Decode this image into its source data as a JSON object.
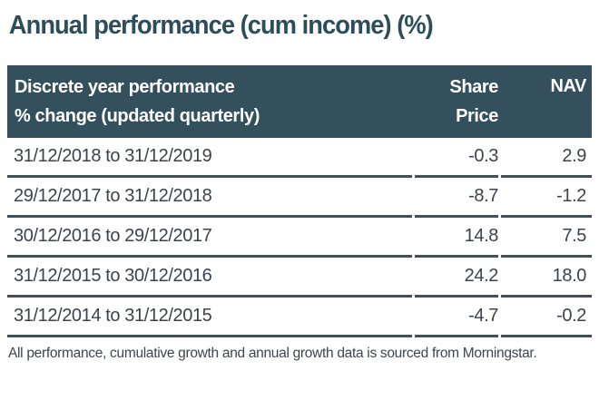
{
  "title": "Annual performance (cum income) (%)",
  "table": {
    "header": {
      "col1_line1": "Discrete year performance",
      "col1_line2": "% change (updated quarterly)",
      "col2_line1": "Share",
      "col2_line2": "Price",
      "col3": "NAV"
    },
    "rows": [
      {
        "period": "31/12/2018 to 31/12/2019",
        "share_price": "-0.3",
        "nav": "2.9"
      },
      {
        "period": "29/12/2017 to 31/12/2018",
        "share_price": "-8.7",
        "nav": "-1.2"
      },
      {
        "period": "30/12/2016 to 29/12/2017",
        "share_price": "14.8",
        "nav": "7.5"
      },
      {
        "period": "31/12/2015 to 30/12/2016",
        "share_price": "24.2",
        "nav": "18.0"
      },
      {
        "period": "31/12/2014 to 31/12/2015",
        "share_price": "-4.7",
        "nav": "-0.2"
      }
    ]
  },
  "footer": "All performance, cumulative growth and annual growth data is sourced from Morningstar.",
  "colors": {
    "header_background": "#34505c",
    "header_text": "#ffffff",
    "title_text": "#2e4d5b",
    "row_text": "#3c434a",
    "divider": "#3d525d"
  }
}
